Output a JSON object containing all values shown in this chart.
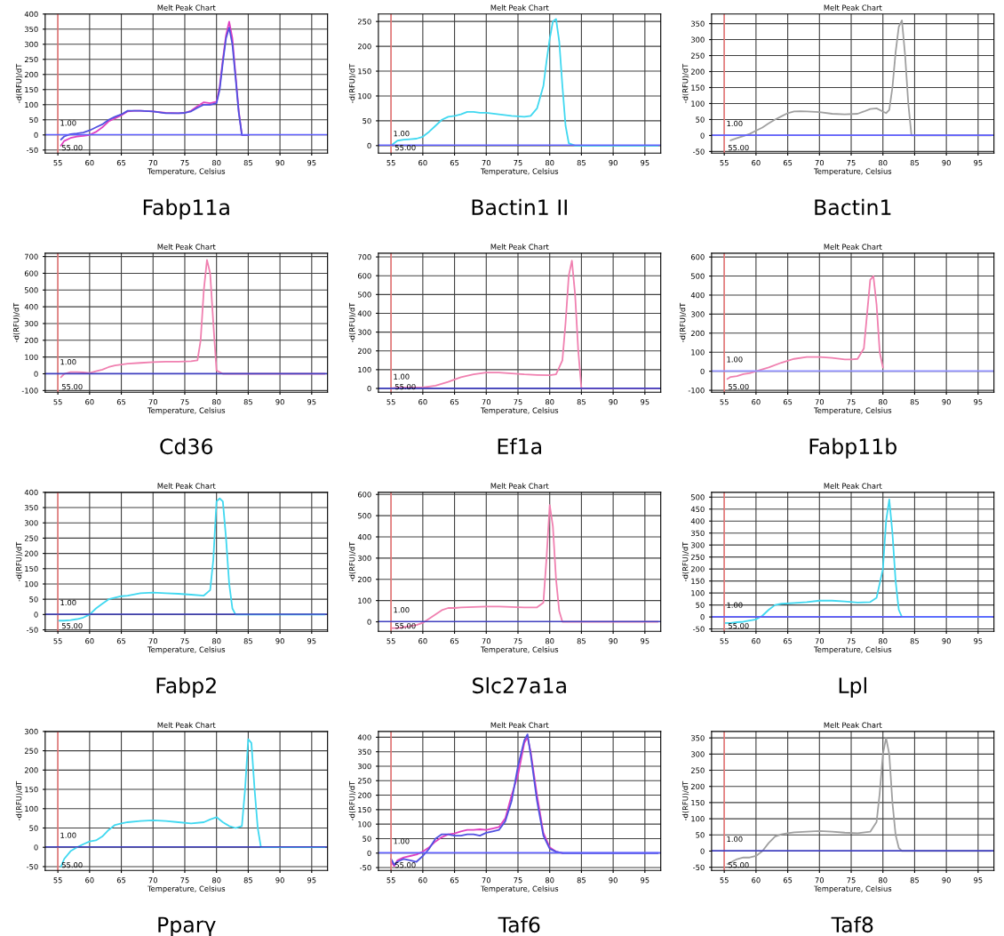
{
  "chart_data": [
    {
      "type": "line",
      "title": "Melt Peak Chart",
      "xlabel": "Temperature, Celsius",
      "ylabel": "-d(RFU)/dT",
      "annotations": [
        "Fabp11a"
      ],
      "xlim": [
        53,
        97.5
      ],
      "xticks": [
        55,
        60,
        65,
        70,
        75,
        80,
        85,
        90,
        95
      ],
      "ylim": [
        -60,
        400
      ],
      "yticks": [
        -50,
        0,
        50,
        100,
        150,
        200,
        250,
        300,
        350,
        400
      ],
      "grid": true,
      "marker": "none",
      "line_style": "solid",
      "ref_lines": [
        {
          "axis": "x",
          "value": 55,
          "label": "55.00",
          "color": "#ff8080"
        },
        {
          "axis": "y",
          "value": 1,
          "label": "1.00",
          "color": "#6060ff"
        }
      ],
      "series": [
        {
          "color": "#e040c0",
          "x": [
            55.5,
            56,
            57,
            58,
            59,
            60,
            61,
            62,
            63,
            64,
            65,
            66,
            67,
            68,
            70,
            72,
            74,
            75,
            76,
            77,
            78,
            79,
            80,
            80.5,
            81,
            81.5,
            82,
            82.5,
            83,
            83.5,
            84,
            85
          ],
          "values": [
            -35,
            -20,
            -10,
            -5,
            -3,
            0,
            10,
            25,
            45,
            55,
            65,
            78,
            80,
            80,
            78,
            73,
            72,
            73,
            80,
            95,
            108,
            105,
            110,
            160,
            250,
            330,
            375,
            320,
            200,
            80,
            0,
            0
          ]
        },
        {
          "color": "#5050e0",
          "x": [
            55.5,
            56,
            57,
            58,
            59,
            60,
            61,
            62,
            63,
            64,
            65,
            66,
            67,
            68,
            70,
            72,
            74,
            75,
            76,
            77,
            78,
            79,
            80,
            80.5,
            81,
            81.5,
            82,
            82.5,
            83,
            83.5,
            84,
            85
          ],
          "values": [
            -15,
            -5,
            3,
            5,
            8,
            15,
            25,
            35,
            50,
            60,
            68,
            80,
            80,
            80,
            78,
            72,
            72,
            73,
            78,
            90,
            100,
            100,
            105,
            150,
            240,
            320,
            355,
            300,
            190,
            75,
            0,
            0
          ]
        }
      ]
    },
    {
      "type": "line",
      "title": "Melt Peak Chart",
      "xlabel": "Temperature, Celsius",
      "ylabel": "-d(RFU)/dT",
      "annotations": [
        "Bactin1 II"
      ],
      "xlim": [
        53,
        97.5
      ],
      "xticks": [
        55,
        60,
        65,
        70,
        75,
        80,
        85,
        90,
        95
      ],
      "ylim": [
        -15,
        265
      ],
      "yticks": [
        0,
        50,
        100,
        150,
        200,
        250
      ],
      "grid": true,
      "marker": "none",
      "line_style": "solid",
      "ref_lines": [
        {
          "axis": "x",
          "value": 55,
          "label": "55.00",
          "color": "#ff8080"
        },
        {
          "axis": "y",
          "value": 1,
          "label": "1.00",
          "color": "#6060ff"
        }
      ],
      "series": [
        {
          "color": "#40d8f0",
          "x": [
            55,
            56,
            57,
            58,
            59,
            60,
            61,
            62,
            63,
            64,
            65,
            66,
            67,
            68,
            69,
            70,
            72,
            74,
            76,
            77,
            78,
            79,
            79.5,
            80,
            80.5,
            81,
            81.5,
            82,
            82.5,
            83,
            84,
            85,
            90,
            97
          ],
          "values": [
            0,
            10,
            12,
            13,
            14,
            18,
            28,
            40,
            52,
            58,
            60,
            63,
            68,
            68,
            66,
            66,
            63,
            60,
            58,
            60,
            75,
            120,
            170,
            215,
            250,
            255,
            210,
            120,
            40,
            5,
            0,
            0,
            0,
            0
          ]
        }
      ]
    },
    {
      "type": "line",
      "title": "Melt Peak Chart",
      "xlabel": "Temperature, Celsius",
      "ylabel": "-d(RFU)/dT",
      "annotations": [
        "Bactin1"
      ],
      "xlim": [
        53,
        97.5
      ],
      "xticks": [
        55,
        60,
        65,
        70,
        75,
        80,
        85,
        90,
        95
      ],
      "ylim": [
        -55,
        380
      ],
      "yticks": [
        -50,
        0,
        50,
        100,
        150,
        200,
        250,
        300,
        350
      ],
      "grid": true,
      "marker": "none",
      "line_style": "solid",
      "ref_lines": [
        {
          "axis": "x",
          "value": 55,
          "label": "55.00",
          "color": "#ff8080"
        },
        {
          "axis": "y",
          "value": 1,
          "label": "1.00",
          "color": "#6060ff"
        }
      ],
      "series": [
        {
          "color": "#a0a0a0",
          "x": [
            56,
            57,
            58,
            59,
            60,
            61,
            62,
            63,
            64,
            65,
            66,
            67,
            68,
            70,
            72,
            74,
            76,
            77,
            78,
            79,
            80,
            80.5,
            81,
            81.5,
            82,
            82.5,
            83,
            83.5,
            84,
            84.5,
            85,
            90,
            97
          ],
          "values": [
            -15,
            -8,
            -2,
            5,
            15,
            25,
            38,
            50,
            60,
            70,
            75,
            76,
            75,
            73,
            68,
            66,
            68,
            75,
            83,
            85,
            75,
            70,
            80,
            150,
            260,
            340,
            360,
            250,
            100,
            0,
            0,
            0,
            0
          ]
        }
      ]
    },
    {
      "type": "line",
      "title": "Melt Peak Chart",
      "xlabel": "Temperature, Celsius",
      "ylabel": "-d(RFU)/dT",
      "annotations": [
        "Cd36"
      ],
      "xlim": [
        53,
        97.5
      ],
      "xticks": [
        55,
        60,
        65,
        70,
        75,
        80,
        85,
        90,
        95
      ],
      "ylim": [
        -110,
        720
      ],
      "yticks": [
        -100,
        0,
        100,
        200,
        300,
        400,
        500,
        600,
        700
      ],
      "grid": true,
      "marker": "none",
      "line_style": "solid",
      "ref_lines": [
        {
          "axis": "x",
          "value": 55,
          "label": "55.00",
          "color": "#ff8080"
        },
        {
          "axis": "y",
          "value": 1,
          "label": "1.00",
          "color": "#4040c0"
        }
      ],
      "series": [
        {
          "color": "#f080b0",
          "x": [
            55.5,
            56,
            57,
            58,
            59,
            60,
            61,
            62,
            63,
            64,
            65,
            66,
            68,
            70,
            72,
            74,
            76,
            77,
            77.5,
            78,
            78.5,
            79,
            79.5,
            80,
            81,
            85,
            97
          ],
          "values": [
            -20,
            0,
            10,
            10,
            8,
            5,
            15,
            25,
            40,
            50,
            55,
            60,
            65,
            70,
            72,
            72,
            75,
            80,
            200,
            500,
            680,
            600,
            300,
            20,
            0,
            0,
            0
          ]
        }
      ]
    },
    {
      "type": "line",
      "title": "Melt Peak Chart",
      "xlabel": "Temperature, Celsius",
      "ylabel": "-d(RFU)/dT",
      "annotations": [
        "Ef1a"
      ],
      "xlim": [
        53,
        97.5
      ],
      "xticks": [
        55,
        60,
        65,
        70,
        75,
        80,
        85,
        90,
        95
      ],
      "ylim": [
        -20,
        720
      ],
      "yticks": [
        0,
        100,
        200,
        300,
        400,
        500,
        600,
        700
      ],
      "grid": true,
      "marker": "none",
      "line_style": "solid",
      "ref_lines": [
        {
          "axis": "x",
          "value": 55,
          "label": "55.00",
          "color": "#ff8080"
        },
        {
          "axis": "y",
          "value": 1,
          "label": "1.00",
          "color": "#4040c0"
        }
      ],
      "series": [
        {
          "color": "#f080b0",
          "x": [
            55,
            56,
            58,
            60,
            62,
            64,
            66,
            68,
            70,
            72,
            74,
            76,
            78,
            80,
            81,
            82,
            82.5,
            83,
            83.5,
            84,
            84.5,
            85,
            86,
            97
          ],
          "values": [
            0,
            5,
            5,
            5,
            15,
            35,
            60,
            75,
            85,
            85,
            80,
            75,
            72,
            70,
            75,
            150,
            350,
            600,
            680,
            500,
            200,
            0,
            0,
            0
          ]
        }
      ]
    },
    {
      "type": "line",
      "title": "Melt Peak Chart",
      "xlabel": "Temperature, Celsius",
      "ylabel": "-d(RFU)/dT",
      "annotations": [
        "Fabp11b"
      ],
      "xlim": [
        53,
        97.5
      ],
      "xticks": [
        55,
        60,
        65,
        70,
        75,
        80,
        85,
        90,
        95
      ],
      "ylim": [
        -110,
        620
      ],
      "yticks": [
        -100,
        0,
        100,
        200,
        300,
        400,
        500,
        600
      ],
      "grid": true,
      "marker": "none",
      "line_style": "solid",
      "ref_lines": [
        {
          "axis": "x",
          "value": 55,
          "label": "55.00",
          "color": "#ff8080"
        },
        {
          "axis": "y",
          "value": 1,
          "label": "1.00",
          "color": "#9090ff"
        }
      ],
      "series": [
        {
          "color": "#f080b0",
          "x": [
            55.5,
            56,
            57,
            58,
            59,
            60,
            62,
            64,
            66,
            68,
            70,
            72,
            74,
            75,
            76,
            77,
            77.5,
            78,
            78.5,
            79,
            79.5,
            80
          ],
          "values": [
            -40,
            -30,
            -25,
            -15,
            -10,
            0,
            20,
            45,
            65,
            75,
            75,
            70,
            62,
            62,
            65,
            120,
            300,
            480,
            500,
            350,
            100,
            20
          ]
        }
      ]
    },
    {
      "type": "line",
      "title": "Melt Peak Chart",
      "xlabel": "Temperature, Celsius",
      "ylabel": "-d(RFU)/dT",
      "annotations": [
        "Fabp2"
      ],
      "xlim": [
        53,
        97.5
      ],
      "xticks": [
        55,
        60,
        65,
        70,
        75,
        80,
        85,
        90,
        95
      ],
      "ylim": [
        -55,
        400
      ],
      "yticks": [
        -50,
        0,
        50,
        100,
        150,
        200,
        250,
        300,
        350,
        400
      ],
      "grid": true,
      "marker": "none",
      "line_style": "solid",
      "ref_lines": [
        {
          "axis": "x",
          "value": 55,
          "label": "55.00",
          "color": "#ff8080"
        },
        {
          "axis": "y",
          "value": 1,
          "label": "1.00",
          "color": "#4040c0"
        }
      ],
      "series": [
        {
          "color": "#40d8f0",
          "x": [
            55,
            56,
            57,
            58,
            59,
            60,
            61,
            62,
            63,
            64,
            65,
            66,
            68,
            70,
            72,
            74,
            76,
            78,
            79,
            79.5,
            80,
            80.5,
            81,
            81.5,
            82,
            82.5,
            83,
            85,
            90,
            97
          ],
          "values": [
            -20,
            -20,
            -18,
            -15,
            -10,
            0,
            20,
            35,
            50,
            55,
            60,
            62,
            70,
            72,
            70,
            68,
            65,
            62,
            80,
            180,
            370,
            380,
            370,
            250,
            100,
            20,
            0,
            0,
            0,
            0
          ]
        }
      ]
    },
    {
      "type": "line",
      "title": "Melt Peak Chart",
      "xlabel": "Temperature, Celsius",
      "ylabel": "-d(RFU)/dT",
      "annotations": [
        "Slc27a1a"
      ],
      "xlim": [
        53,
        97.5
      ],
      "xticks": [
        55,
        60,
        65,
        70,
        75,
        80,
        85,
        90,
        95
      ],
      "ylim": [
        -45,
        610
      ],
      "yticks": [
        0,
        100,
        200,
        300,
        400,
        500,
        600
      ],
      "grid": true,
      "marker": "none",
      "line_style": "solid",
      "ref_lines": [
        {
          "axis": "x",
          "value": 55,
          "label": "55.00",
          "color": "#ff8080"
        },
        {
          "axis": "y",
          "value": 1,
          "label": "1.00",
          "color": "#4040c0"
        }
      ],
      "series": [
        {
          "color": "#f080b0",
          "x": [
            55,
            56,
            57,
            58,
            59,
            60,
            61,
            62,
            63,
            64,
            65,
            66,
            68,
            70,
            72,
            74,
            76,
            78,
            79,
            79.5,
            80,
            80.5,
            81,
            81.5,
            82,
            85,
            97
          ],
          "values": [
            -30,
            -30,
            -25,
            -20,
            -15,
            -5,
            15,
            35,
            55,
            65,
            65,
            68,
            70,
            72,
            72,
            70,
            68,
            68,
            90,
            300,
            550,
            450,
            200,
            50,
            0,
            0,
            0
          ]
        }
      ]
    },
    {
      "type": "line",
      "title": "Melt Peak Chart",
      "xlabel": "Temperature, Celsius",
      "ylabel": "-d(RFU)/dT",
      "annotations": [
        "Lpl"
      ],
      "xlim": [
        53,
        97.5
      ],
      "xticks": [
        55,
        60,
        65,
        70,
        75,
        80,
        85,
        90,
        95
      ],
      "ylim": [
        -60,
        520
      ],
      "yticks": [
        -50,
        0,
        50,
        100,
        150,
        200,
        250,
        300,
        350,
        400,
        450,
        500
      ],
      "grid": true,
      "marker": "none",
      "line_style": "solid",
      "ref_lines": [
        {
          "axis": "x",
          "value": 55,
          "label": "55.00",
          "color": "#ff8080"
        },
        {
          "axis": "y",
          "value": 1,
          "label": "1.00",
          "color": "#6060ff"
        }
      ],
      "series": [
        {
          "color": "#40d8f0",
          "x": [
            55,
            56,
            57,
            58,
            59,
            60,
            61,
            62,
            63,
            64,
            66,
            68,
            70,
            72,
            74,
            76,
            78,
            79,
            80,
            80.5,
            81,
            81.5,
            82,
            82.5,
            83,
            85,
            97
          ],
          "values": [
            -25,
            -25,
            -22,
            -20,
            -15,
            -10,
            5,
            30,
            50,
            55,
            58,
            62,
            68,
            68,
            65,
            60,
            62,
            80,
            200,
            400,
            490,
            350,
            150,
            30,
            0,
            0,
            0
          ]
        }
      ]
    },
    {
      "type": "line",
      "title": "Melt Peak Chart",
      "xlabel": "Temperature, Celsius",
      "ylabel": "-d(RFU)/dT",
      "annotations": [
        "Pparγ"
      ],
      "xlim": [
        53,
        97.5
      ],
      "xticks": [
        55,
        60,
        65,
        70,
        75,
        80,
        85,
        90,
        95
      ],
      "ylim": [
        -60,
        300
      ],
      "yticks": [
        -50,
        0,
        50,
        100,
        150,
        200,
        250,
        300
      ],
      "grid": true,
      "marker": "none",
      "line_style": "solid",
      "ref_lines": [
        {
          "axis": "x",
          "value": 55,
          "label": "55.00",
          "color": "#ff8080"
        },
        {
          "axis": "y",
          "value": 1,
          "label": "1.00",
          "color": "#4040c0"
        }
      ],
      "series": [
        {
          "color": "#40d8f0",
          "x": [
            55.5,
            56,
            57,
            58,
            59,
            60,
            61,
            62,
            63,
            64,
            65,
            66,
            68,
            70,
            72,
            74,
            76,
            78,
            79,
            80,
            81,
            82,
            83,
            84,
            84.5,
            85,
            85.5,
            86,
            86.5,
            87,
            88,
            97
          ],
          "values": [
            -50,
            -30,
            -10,
            0,
            8,
            15,
            18,
            28,
            45,
            58,
            62,
            65,
            68,
            70,
            68,
            65,
            62,
            65,
            72,
            78,
            65,
            55,
            50,
            55,
            150,
            280,
            270,
            150,
            50,
            0,
            0,
            0
          ]
        }
      ]
    },
    {
      "type": "line",
      "title": "Melt Peak Chart",
      "xlabel": "Temperature, Celsius",
      "ylabel": "-d(RFU)/dT",
      "annotations": [
        "Taf6"
      ],
      "xlim": [
        53,
        97.5
      ],
      "xticks": [
        55,
        60,
        65,
        70,
        75,
        80,
        85,
        90,
        95
      ],
      "ylim": [
        -60,
        420
      ],
      "yticks": [
        -50,
        0,
        50,
        100,
        150,
        200,
        250,
        300,
        350,
        400
      ],
      "grid": true,
      "marker": "none",
      "line_style": "solid",
      "ref_lines": [
        {
          "axis": "x",
          "value": 55,
          "label": "55.00",
          "color": "#ff8080"
        },
        {
          "axis": "y",
          "value": 1,
          "label": "1.00",
          "color": "#6060ff"
        }
      ],
      "series": [
        {
          "color": "#e040c0",
          "x": [
            55,
            55.5,
            56,
            57,
            58,
            59,
            60,
            61,
            62,
            63,
            64,
            65,
            66,
            67,
            68,
            69,
            70,
            71,
            72,
            73,
            74,
            75,
            76,
            76.5,
            77,
            78,
            79,
            80,
            81,
            82
          ],
          "values": [
            -30,
            -45,
            -25,
            -15,
            -10,
            -5,
            5,
            20,
            40,
            55,
            65,
            68,
            75,
            80,
            80,
            82,
            80,
            85,
            90,
            120,
            200,
            270,
            380,
            400,
            350,
            200,
            70,
            20,
            5,
            0
          ]
        },
        {
          "color": "#5050e0",
          "x": [
            55,
            55.5,
            56,
            57,
            58,
            59,
            60,
            61,
            62,
            63,
            64,
            65,
            66,
            67,
            68,
            69,
            70,
            71,
            72,
            73,
            74,
            75,
            76,
            76.5,
            77,
            78,
            79,
            80,
            81,
            82,
            85,
            97
          ],
          "values": [
            -20,
            -40,
            -30,
            -20,
            -25,
            -30,
            -10,
            15,
            50,
            65,
            65,
            60,
            60,
            65,
            65,
            60,
            70,
            75,
            80,
            110,
            180,
            300,
            390,
            410,
            340,
            180,
            60,
            15,
            5,
            0,
            0,
            0
          ]
        }
      ]
    },
    {
      "type": "line",
      "title": "Melt Peak Chart",
      "xlabel": "Temperature, Celsius",
      "ylabel": "-d(RFU)/dT",
      "annotations": [
        "Taf8"
      ],
      "xlim": [
        53,
        97.5
      ],
      "xticks": [
        55,
        60,
        65,
        70,
        75,
        80,
        85,
        90,
        95
      ],
      "ylim": [
        -60,
        370
      ],
      "yticks": [
        -50,
        0,
        50,
        100,
        150,
        200,
        250,
        300,
        350
      ],
      "grid": true,
      "marker": "none",
      "line_style": "solid",
      "ref_lines": [
        {
          "axis": "x",
          "value": 55,
          "label": "55.00",
          "color": "#ff8080"
        },
        {
          "axis": "y",
          "value": 1,
          "label": "1.00",
          "color": "#4040c0"
        }
      ],
      "series": [
        {
          "color": "#a0a0a0",
          "x": [
            55.5,
            56,
            57,
            58,
            59,
            60,
            61,
            62,
            63,
            64,
            65,
            66,
            68,
            70,
            72,
            74,
            76,
            78,
            79,
            79.5,
            80,
            80.5,
            81,
            81.5,
            82,
            82.5,
            83,
            85,
            97
          ],
          "values": [
            -40,
            -35,
            -25,
            -20,
            -20,
            -15,
            0,
            25,
            45,
            52,
            55,
            58,
            60,
            62,
            60,
            57,
            55,
            60,
            90,
            180,
            300,
            350,
            300,
            150,
            50,
            10,
            0,
            0,
            0
          ]
        }
      ]
    }
  ]
}
